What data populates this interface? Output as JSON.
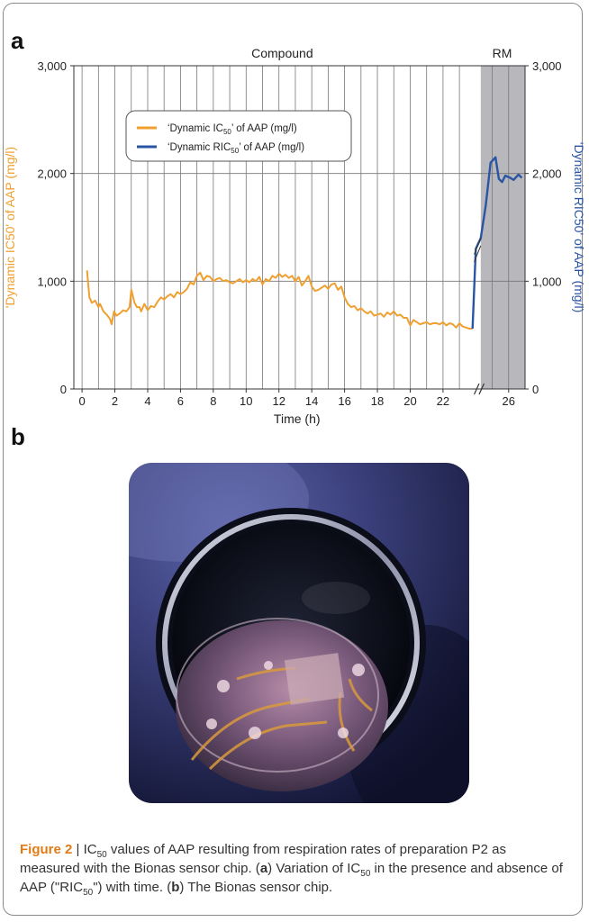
{
  "panel_a_label": "a",
  "panel_b_label": "b",
  "caption": {
    "figure_label": "Figure 2",
    "separator": " | ",
    "p1": "IC",
    "p1_sub": "50",
    "p2": " values of AAP resulting from respiration rates of preparation P2 as measured with the Bionas sensor chip. (",
    "p3": "a",
    "p4": ") Variation of IC",
    "p4_sub": "50",
    "p5": " in the presence and absence of AAP (\"RIC",
    "p5_sub": "50",
    "p6": "\") with time. (",
    "p7": "b",
    "p8": ") The Bionas sensor chip."
  },
  "chart_data": {
    "type": "line",
    "top_labels": {
      "compound": "Compound",
      "rm": "RM"
    },
    "xlabel": "Time (h)",
    "xticks": [
      "0",
      "2",
      "4",
      "6",
      "8",
      "10",
      "12",
      "14",
      "16",
      "18",
      "20",
      "22",
      "26"
    ],
    "xtick_values": [
      0,
      2,
      4,
      6,
      8,
      10,
      12,
      14,
      16,
      18,
      20,
      22,
      26
    ],
    "xlim": [
      -0.5,
      27
    ],
    "ylim": [
      0,
      3000
    ],
    "yticks": [
      "0",
      "1,000",
      "2,000",
      "3,000"
    ],
    "ytick_values": [
      0,
      1000,
      2000,
      3000
    ],
    "ylabel_left": "'Dynamic IC50' of AAP (mg/l)",
    "ylabel_right": "'Dynamic RIC50' of AAP (mg/l)",
    "rm_shading": {
      "x_start": 24.3,
      "x_end": 27,
      "color": "#b8b8bc"
    },
    "legend": {
      "placement": "top-left"
    },
    "colors": {
      "ic50": "#f0a030",
      "ric50": "#2a55a5",
      "grid": "#777777",
      "axis_left_label": "#f0a030",
      "axis_right_label": "#2a55a5"
    },
    "series": [
      {
        "name": "'Dynamic IC50' of AAP (mg/l)",
        "legend_main": "‘Dynamic IC",
        "legend_sub": "50",
        "legend_rest": "’ of AAP (mg/l)",
        "color": "#f0a030",
        "points": [
          [
            0.3,
            1100
          ],
          [
            0.45,
            850
          ],
          [
            0.6,
            800
          ],
          [
            0.8,
            820
          ],
          [
            1.0,
            760
          ],
          [
            1.1,
            790
          ],
          [
            1.3,
            720
          ],
          [
            1.5,
            690
          ],
          [
            1.7,
            650
          ],
          [
            1.8,
            600
          ],
          [
            1.95,
            720
          ],
          [
            2.1,
            680
          ],
          [
            2.3,
            700
          ],
          [
            2.5,
            730
          ],
          [
            2.7,
            720
          ],
          [
            2.9,
            760
          ],
          [
            3.0,
            920
          ],
          [
            3.2,
            800
          ],
          [
            3.35,
            760
          ],
          [
            3.5,
            760
          ],
          [
            3.6,
            720
          ],
          [
            3.8,
            790
          ],
          [
            4.0,
            730
          ],
          [
            4.2,
            770
          ],
          [
            4.4,
            760
          ],
          [
            4.6,
            810
          ],
          [
            4.8,
            850
          ],
          [
            5.0,
            830
          ],
          [
            5.2,
            860
          ],
          [
            5.4,
            880
          ],
          [
            5.6,
            850
          ],
          [
            5.8,
            900
          ],
          [
            6.0,
            880
          ],
          [
            6.2,
            900
          ],
          [
            6.4,
            930
          ],
          [
            6.6,
            990
          ],
          [
            6.8,
            970
          ],
          [
            7.0,
            1050
          ],
          [
            7.2,
            1080
          ],
          [
            7.4,
            1010
          ],
          [
            7.6,
            1050
          ],
          [
            7.8,
            1040
          ],
          [
            8.0,
            1000
          ],
          [
            8.2,
            1020
          ],
          [
            8.4,
            1030
          ],
          [
            8.6,
            1000
          ],
          [
            8.8,
            1010
          ],
          [
            9.0,
            990
          ],
          [
            9.2,
            980
          ],
          [
            9.4,
            1000
          ],
          [
            9.6,
            1020
          ],
          [
            9.8,
            990
          ],
          [
            10.0,
            1010
          ],
          [
            10.2,
            990
          ],
          [
            10.4,
            1020
          ],
          [
            10.6,
            1000
          ],
          [
            10.8,
            1040
          ],
          [
            11.0,
            970
          ],
          [
            11.2,
            1020
          ],
          [
            11.4,
            1000
          ],
          [
            11.6,
            1050
          ],
          [
            11.8,
            1030
          ],
          [
            12.0,
            1070
          ],
          [
            12.2,
            1040
          ],
          [
            12.4,
            1060
          ],
          [
            12.6,
            1030
          ],
          [
            12.8,
            1050
          ],
          [
            13.0,
            1000
          ],
          [
            13.2,
            1040
          ],
          [
            13.4,
            960
          ],
          [
            13.6,
            1000
          ],
          [
            13.8,
            1050
          ],
          [
            14.0,
            950
          ],
          [
            14.2,
            910
          ],
          [
            14.4,
            920
          ],
          [
            14.6,
            940
          ],
          [
            14.8,
            960
          ],
          [
            15.0,
            930
          ],
          [
            15.2,
            970
          ],
          [
            15.4,
            980
          ],
          [
            15.6,
            920
          ],
          [
            15.8,
            950
          ],
          [
            16.0,
            850
          ],
          [
            16.2,
            790
          ],
          [
            16.4,
            760
          ],
          [
            16.6,
            770
          ],
          [
            16.8,
            730
          ],
          [
            17.0,
            750
          ],
          [
            17.2,
            720
          ],
          [
            17.4,
            700
          ],
          [
            17.6,
            720
          ],
          [
            17.8,
            680
          ],
          [
            18.0,
            690
          ],
          [
            18.2,
            700
          ],
          [
            18.4,
            670
          ],
          [
            18.6,
            710
          ],
          [
            18.8,
            690
          ],
          [
            19.0,
            720
          ],
          [
            19.2,
            680
          ],
          [
            19.4,
            690
          ],
          [
            19.6,
            660
          ],
          [
            19.8,
            660
          ],
          [
            20.0,
            590
          ],
          [
            20.2,
            640
          ],
          [
            20.4,
            620
          ],
          [
            20.6,
            600
          ],
          [
            20.8,
            610
          ],
          [
            21.0,
            620
          ],
          [
            21.2,
            600
          ],
          [
            21.4,
            610
          ],
          [
            21.6,
            610
          ],
          [
            21.8,
            600
          ],
          [
            22.0,
            620
          ],
          [
            22.2,
            590
          ],
          [
            22.4,
            610
          ],
          [
            22.6,
            600
          ],
          [
            22.8,
            570
          ],
          [
            23.0,
            610
          ],
          [
            23.2,
            580
          ],
          [
            23.4,
            570
          ],
          [
            23.6,
            560
          ],
          [
            23.8,
            560
          ]
        ]
      },
      {
        "name": "'Dynamic RIC50' of AAP (mg/l)",
        "legend_main": "‘Dynamic RIC",
        "legend_sub": "50",
        "legend_rest": "’ of AAP (mg/l)",
        "color": "#2a55a5",
        "points": [
          [
            23.8,
            560
          ],
          [
            24.0,
            1300
          ],
          [
            24.3,
            1400
          ],
          [
            24.6,
            1700
          ],
          [
            24.9,
            2100
          ],
          [
            25.2,
            2150
          ],
          [
            25.4,
            1950
          ],
          [
            25.6,
            1920
          ],
          [
            25.8,
            1980
          ],
          [
            26.1,
            1960
          ],
          [
            26.3,
            1940
          ],
          [
            26.6,
            1990
          ],
          [
            26.8,
            1960
          ]
        ]
      }
    ]
  }
}
